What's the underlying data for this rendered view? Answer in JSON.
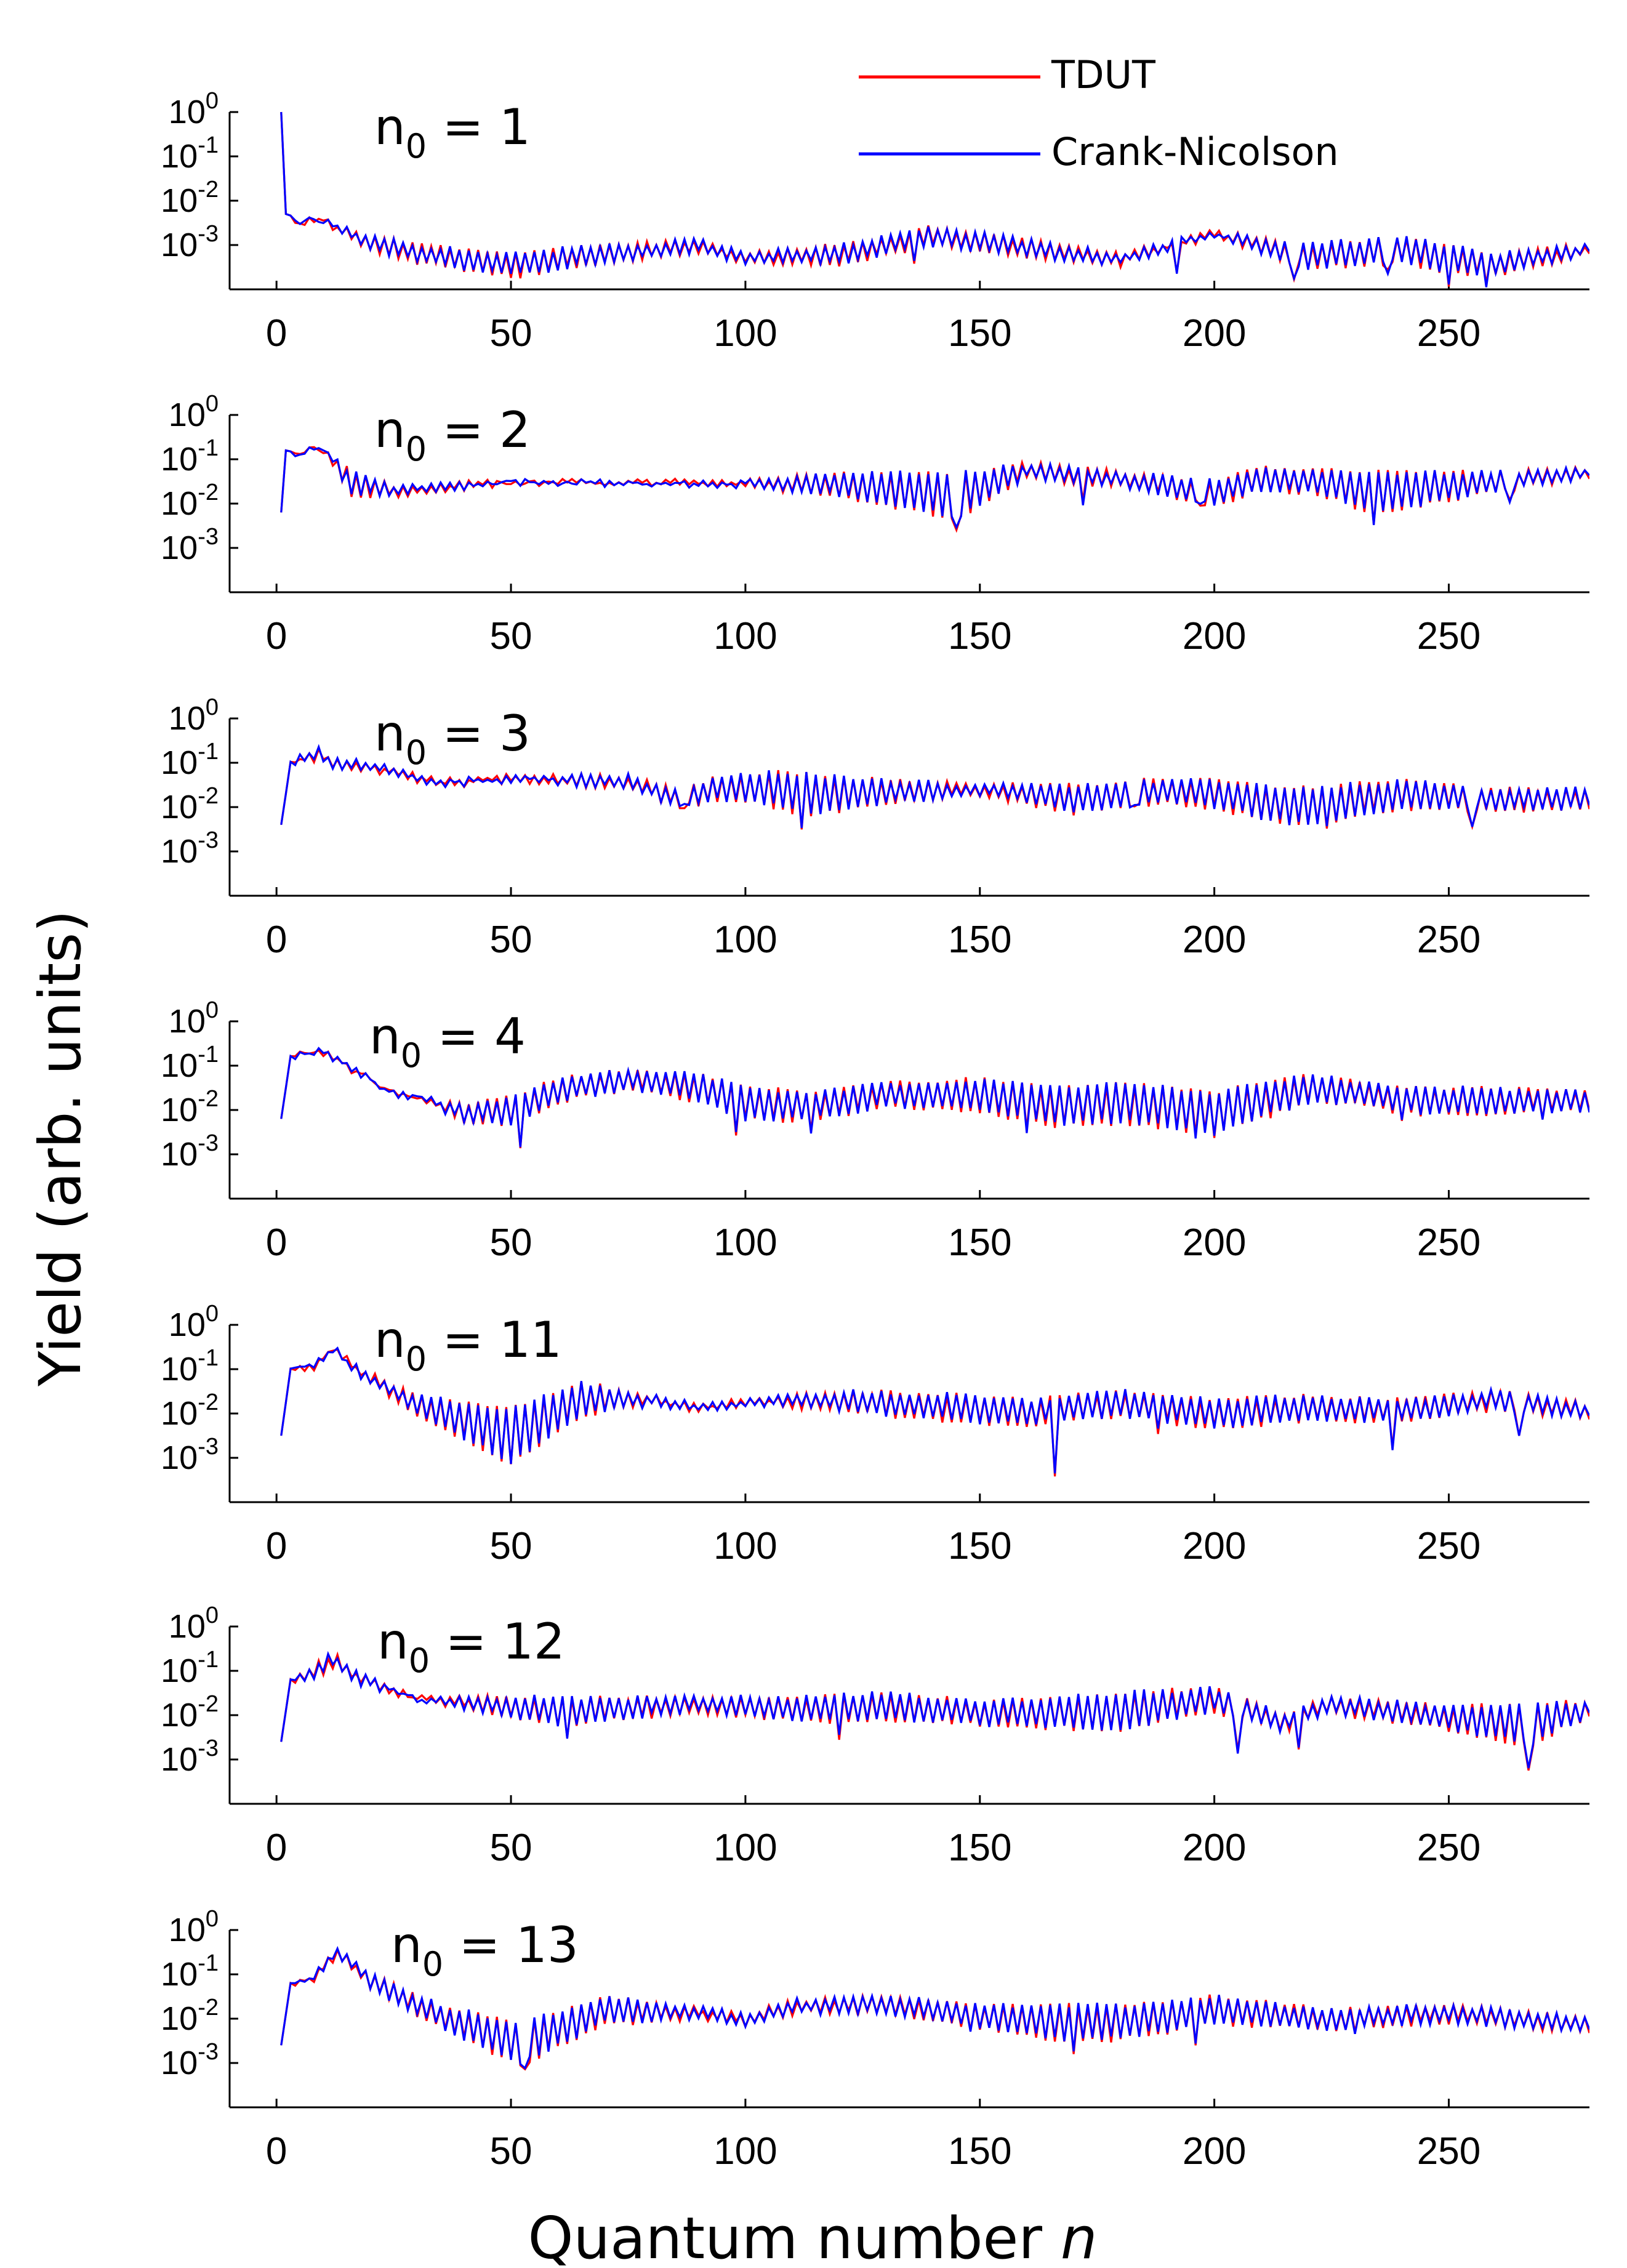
{
  "chart_data": {
    "type": "line",
    "title": "",
    "xlabel_text": "Quantum number",
    "xlabel_var": "n",
    "ylabel": "Yield (arb. units)",
    "xlim": [
      -10,
      280
    ],
    "ylim_exp": [
      -4,
      0
    ],
    "x_ticks": [
      0,
      50,
      100,
      150,
      200,
      250
    ],
    "x_tick_labels": [
      "0",
      "50",
      "100",
      "150",
      "200",
      "250"
    ],
    "y_tick_exponents": [
      0,
      -1,
      -2,
      -3
    ],
    "y_tick_base": "10",
    "legend_position": "top-right",
    "legend": [
      {
        "name": "TDUT",
        "color": "#ff0000"
      },
      {
        "name": "Crank-Nicolson",
        "color": "#0000ff"
      }
    ],
    "panels": [
      {
        "label_base": "n",
        "label_sub": "0",
        "label_value": "= 1",
        "start_x": 1,
        "start_val": 0,
        "smooth": 0,
        "noise": 0,
        "env": [
          [
            1,
            0
          ],
          [
            2,
            -2.3
          ],
          [
            5,
            -2.5
          ],
          [
            8,
            -2.4
          ],
          [
            12,
            -2.5
          ],
          [
            20,
            -2.8
          ],
          [
            30,
            -3.0
          ],
          [
            50,
            -3.2
          ],
          [
            70,
            -3.0
          ],
          [
            90,
            -2.9
          ],
          [
            100,
            -3.2
          ],
          [
            120,
            -3.0
          ],
          [
            140,
            -2.6
          ],
          [
            160,
            -2.9
          ],
          [
            180,
            -3.2
          ],
          [
            200,
            -2.7
          ],
          [
            220,
            -3.0
          ],
          [
            240,
            -2.8
          ],
          [
            260,
            -3.2
          ],
          [
            280,
            -3.0
          ]
        ],
        "amp": [
          [
            1,
            0
          ],
          [
            10,
            0.05
          ],
          [
            20,
            0.3
          ],
          [
            50,
            0.5
          ],
          [
            80,
            0.3
          ],
          [
            100,
            0.2
          ],
          [
            120,
            0.4
          ],
          [
            140,
            0.4
          ],
          [
            170,
            0.3
          ],
          [
            200,
            0.1
          ],
          [
            220,
            0.5
          ],
          [
            250,
            0.6
          ],
          [
            280,
            0.2
          ]
        ],
        "dips": [
          [
            250,
            -3.9
          ],
          [
            258,
            -3.9
          ],
          [
            217,
            -3.7
          ],
          [
            237,
            -3.6
          ],
          [
            192,
            -3.6
          ],
          [
            136,
            -3.4
          ]
        ]
      },
      {
        "label_base": "n",
        "label_sub": "0",
        "label_value": "= 2",
        "start_x": 1,
        "start_val": -2.2,
        "smooth": 0,
        "noise": 0,
        "env": [
          [
            1,
            -2.2
          ],
          [
            2,
            -0.8
          ],
          [
            4,
            -0.9
          ],
          [
            8,
            -0.7
          ],
          [
            12,
            -0.9
          ],
          [
            16,
            -1.3
          ],
          [
            25,
            -1.6
          ],
          [
            50,
            -1.5
          ],
          [
            80,
            -1.5
          ],
          [
            100,
            -1.5
          ],
          [
            120,
            -1.3
          ],
          [
            145,
            -1.3
          ],
          [
            160,
            -1.1
          ],
          [
            180,
            -1.3
          ],
          [
            200,
            -1.5
          ],
          [
            210,
            -1.2
          ],
          [
            240,
            -1.3
          ],
          [
            260,
            -1.3
          ],
          [
            280,
            -1.2
          ]
        ],
        "amp": [
          [
            1,
            0
          ],
          [
            10,
            0.05
          ],
          [
            16,
            0.5
          ],
          [
            25,
            0.2
          ],
          [
            50,
            0.05
          ],
          [
            100,
            0.1
          ],
          [
            120,
            0.5
          ],
          [
            145,
            1.0
          ],
          [
            160,
            0.3
          ],
          [
            180,
            0.3
          ],
          [
            200,
            0.5
          ],
          [
            220,
            0.5
          ],
          [
            235,
            0.9
          ],
          [
            260,
            0.4
          ],
          [
            280,
            0.2
          ]
        ],
        "dips": [
          [
            145,
            -2.6
          ],
          [
            234,
            -2.5
          ],
          [
            172,
            -2.0
          ],
          [
            197,
            -2.0
          ],
          [
            263,
            -1.9
          ]
        ]
      },
      {
        "label_base": "n",
        "label_sub": "0",
        "label_value": "= 3",
        "start_x": 1,
        "start_val": -2.4,
        "smooth": 0,
        "noise": 0,
        "env": [
          [
            1,
            -2.4
          ],
          [
            3,
            -1.0
          ],
          [
            6,
            -0.8
          ],
          [
            9,
            -0.7
          ],
          [
            12,
            -0.9
          ],
          [
            20,
            -1.0
          ],
          [
            35,
            -1.4
          ],
          [
            50,
            -1.3
          ],
          [
            75,
            -1.3
          ],
          [
            85,
            -1.6
          ],
          [
            95,
            -1.3
          ],
          [
            105,
            -1.2
          ],
          [
            130,
            -1.4
          ],
          [
            150,
            -1.5
          ],
          [
            170,
            -1.5
          ],
          [
            185,
            -1.4
          ],
          [
            200,
            -1.4
          ],
          [
            215,
            -1.6
          ],
          [
            240,
            -1.4
          ],
          [
            260,
            -1.6
          ],
          [
            280,
            -1.6
          ]
        ],
        "amp": [
          [
            1,
            0
          ],
          [
            8,
            0.2
          ],
          [
            20,
            0.15
          ],
          [
            50,
            0.1
          ],
          [
            80,
            0.3
          ],
          [
            100,
            0.6
          ],
          [
            112,
            0.9
          ],
          [
            130,
            0.5
          ],
          [
            150,
            0.2
          ],
          [
            170,
            0.6
          ],
          [
            190,
            0.5
          ],
          [
            220,
            0.8
          ],
          [
            250,
            0.5
          ],
          [
            280,
            0.4
          ]
        ],
        "dips": [
          [
            112,
            -2.5
          ],
          [
            224,
            -2.5
          ],
          [
            255,
            -2.4
          ],
          [
            183,
            -2.0
          ],
          [
            87,
            -2.0
          ]
        ]
      },
      {
        "label_base": "n",
        "label_sub": "0",
        "label_value": "= 4",
        "start_x": 1,
        "start_val": -2.2,
        "smooth": 0,
        "noise": 0,
        "env": [
          [
            1,
            -2.2
          ],
          [
            3,
            -0.8
          ],
          [
            6,
            -0.7
          ],
          [
            9,
            -0.6
          ],
          [
            14,
            -0.9
          ],
          [
            25,
            -1.6
          ],
          [
            40,
            -1.9
          ],
          [
            50,
            -1.7
          ],
          [
            60,
            -1.3
          ],
          [
            75,
            -1.1
          ],
          [
            90,
            -1.2
          ],
          [
            100,
            -1.5
          ],
          [
            115,
            -1.6
          ],
          [
            130,
            -1.4
          ],
          [
            150,
            -1.3
          ],
          [
            165,
            -1.5
          ],
          [
            180,
            -1.4
          ],
          [
            200,
            -1.6
          ],
          [
            220,
            -1.2
          ],
          [
            240,
            -1.5
          ],
          [
            260,
            -1.5
          ],
          [
            280,
            -1.6
          ]
        ],
        "amp": [
          [
            1,
            0
          ],
          [
            10,
            0.1
          ],
          [
            30,
            0.05
          ],
          [
            50,
            0.6
          ],
          [
            75,
            0.4
          ],
          [
            100,
            0.7
          ],
          [
            115,
            0.6
          ],
          [
            130,
            0.5
          ],
          [
            160,
            0.8
          ],
          [
            200,
            0.9
          ],
          [
            230,
            0.5
          ],
          [
            250,
            0.6
          ],
          [
            280,
            0.4
          ]
        ],
        "dips": [
          [
            52,
            -2.9
          ],
          [
            98,
            -2.5
          ],
          [
            114,
            -2.5
          ],
          [
            160,
            -2.5
          ],
          [
            196,
            -2.6
          ],
          [
            200,
            -2.6
          ],
          [
            240,
            -2.2
          ],
          [
            270,
            -2.2
          ]
        ]
      },
      {
        "label_base": "n",
        "label_sub": "0",
        "label_value": "= 11",
        "start_x": 1,
        "start_val": -2.5,
        "smooth": 0,
        "noise": 0,
        "env": [
          [
            1,
            -2.5
          ],
          [
            3,
            -1.0
          ],
          [
            8,
            -0.9
          ],
          [
            12,
            -0.5
          ],
          [
            18,
            -1.0
          ],
          [
            30,
            -1.6
          ],
          [
            50,
            -1.9
          ],
          [
            65,
            -1.3
          ],
          [
            80,
            -1.6
          ],
          [
            90,
            -1.8
          ],
          [
            110,
            -1.6
          ],
          [
            125,
            -1.5
          ],
          [
            150,
            -1.6
          ],
          [
            160,
            -1.7
          ],
          [
            180,
            -1.5
          ],
          [
            200,
            -1.7
          ],
          [
            220,
            -1.6
          ],
          [
            240,
            -1.7
          ],
          [
            260,
            -1.5
          ],
          [
            280,
            -1.8
          ]
        ],
        "amp": [
          [
            1,
            0
          ],
          [
            20,
            0.2
          ],
          [
            30,
            0.4
          ],
          [
            50,
            1.2
          ],
          [
            65,
            0.7
          ],
          [
            80,
            0.2
          ],
          [
            100,
            0.1
          ],
          [
            130,
            0.5
          ],
          [
            150,
            0.6
          ],
          [
            166,
            0.5
          ],
          [
            200,
            0.6
          ],
          [
            230,
            0.5
          ],
          [
            280,
            0.3
          ]
        ],
        "dips": [
          [
            166,
            -3.4
          ],
          [
            50,
            -3.1
          ],
          [
            238,
            -2.8
          ],
          [
            188,
            -2.4
          ],
          [
            265,
            -2.5
          ]
        ]
      },
      {
        "label_base": "n",
        "label_sub": "0",
        "label_value": "= 12",
        "start_x": 1,
        "start_val": -2.6,
        "smooth": 0,
        "noise": 0,
        "env": [
          [
            1,
            -2.6
          ],
          [
            3,
            -1.2
          ],
          [
            8,
            -0.9
          ],
          [
            12,
            -0.6
          ],
          [
            18,
            -1.1
          ],
          [
            30,
            -1.6
          ],
          [
            50,
            -1.6
          ],
          [
            70,
            -1.6
          ],
          [
            90,
            -1.6
          ],
          [
            110,
            -1.6
          ],
          [
            130,
            -1.5
          ],
          [
            150,
            -1.7
          ],
          [
            180,
            -1.5
          ],
          [
            200,
            -1.4
          ],
          [
            215,
            -2.0
          ],
          [
            225,
            -1.6
          ],
          [
            250,
            -1.8
          ],
          [
            280,
            -1.7
          ]
        ],
        "amp": [
          [
            1,
            0
          ],
          [
            10,
            0.3
          ],
          [
            30,
            0.05
          ],
          [
            60,
            0.6
          ],
          [
            90,
            0.3
          ],
          [
            120,
            0.6
          ],
          [
            150,
            0.5
          ],
          [
            180,
            0.8
          ],
          [
            200,
            0.5
          ],
          [
            220,
            0.3
          ],
          [
            250,
            0.5
          ],
          [
            267,
            0.9
          ],
          [
            280,
            0.3
          ]
        ],
        "dips": [
          [
            267,
            -3.2
          ],
          [
            218,
            -2.8
          ],
          [
            205,
            -2.8
          ],
          [
            120,
            -2.5
          ],
          [
            62,
            -2.5
          ]
        ]
      },
      {
        "label_base": "n",
        "label_sub": "0",
        "label_value": "= 13",
        "start_x": 1,
        "start_val": -2.6,
        "smooth": 0,
        "noise": 0,
        "env": [
          [
            1,
            -2.6
          ],
          [
            3,
            -1.2
          ],
          [
            8,
            -1.0
          ],
          [
            13,
            -0.4
          ],
          [
            20,
            -1.0
          ],
          [
            35,
            -1.7
          ],
          [
            52,
            -2.1
          ],
          [
            70,
            -1.5
          ],
          [
            85,
            -1.7
          ],
          [
            100,
            -1.9
          ],
          [
            110,
            -1.6
          ],
          [
            130,
            -1.5
          ],
          [
            150,
            -1.7
          ],
          [
            180,
            -1.7
          ],
          [
            200,
            -1.5
          ],
          [
            225,
            -1.8
          ],
          [
            250,
            -1.7
          ],
          [
            280,
            -2.0
          ]
        ],
        "amp": [
          [
            1,
            0
          ],
          [
            20,
            0.3
          ],
          [
            35,
            0.5
          ],
          [
            52,
            0.9
          ],
          [
            70,
            0.6
          ],
          [
            90,
            0.2
          ],
          [
            120,
            0.3
          ],
          [
            150,
            0.5
          ],
          [
            170,
            0.8
          ],
          [
            200,
            0.6
          ],
          [
            230,
            0.4
          ],
          [
            280,
            0.3
          ]
        ],
        "dips": [
          [
            53,
            -3.1
          ],
          [
            170,
            -2.8
          ],
          [
            196,
            -2.6
          ],
          [
            148,
            -2.3
          ],
          [
            230,
            -2.3
          ]
        ]
      }
    ]
  }
}
